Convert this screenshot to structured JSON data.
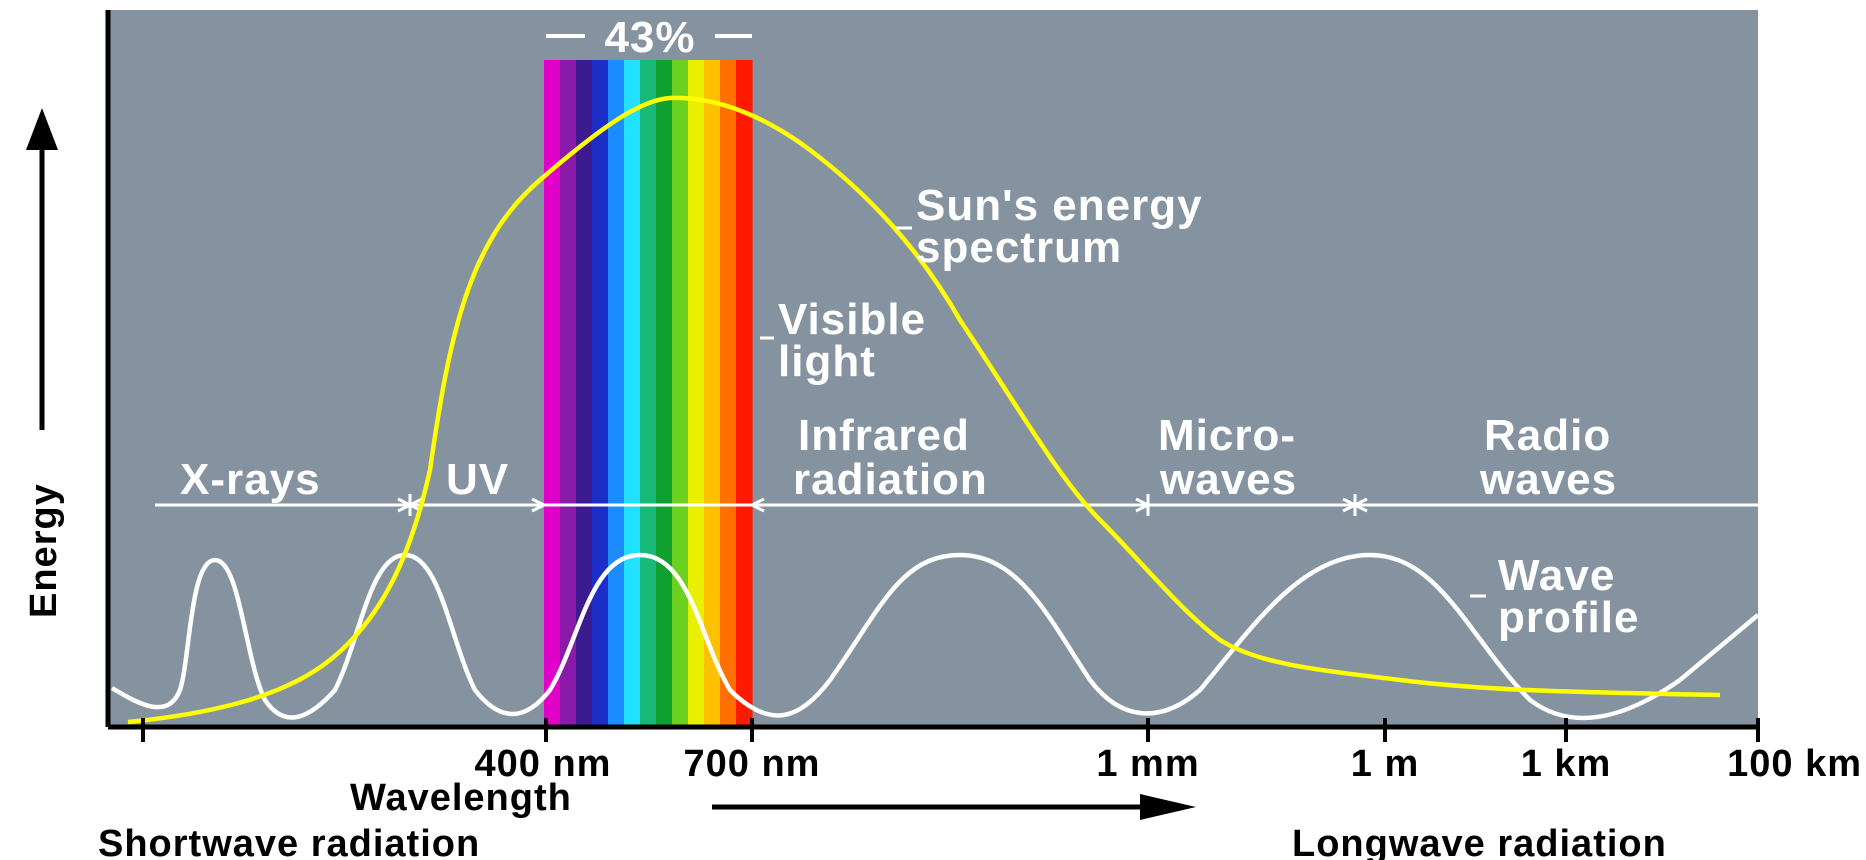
{
  "diagram": {
    "y_axis_label": "Energy",
    "x_axis_label": "Wavelength",
    "shortwave_label": "Shortwave radiation",
    "longwave_label": "Longwave radiation",
    "percent_label": "43%",
    "tick_labels": [
      "400 nm",
      "700 nm",
      "1 mm",
      "1 m",
      "1 km",
      "100 km"
    ],
    "band_labels": {
      "xrays": "X-rays",
      "uv": "UV",
      "infrared_line1": "Infrared",
      "infrared_line2": "radiation",
      "micro_line1": "Micro-",
      "micro_line2": "waves",
      "radio_line1": "Radio",
      "radio_line2": "waves"
    },
    "annotations": {
      "sun_line1": "Sun's energy",
      "sun_line2": "spectrum",
      "visible_line1": "Visible",
      "visible_line2": "light",
      "wave_line1": "Wave",
      "wave_line2": "profile"
    },
    "colors": {
      "background": "#8593a0",
      "sun_curve": "#ffff00",
      "wave_curve": "#ffffff",
      "spectrum": [
        "#e000c8",
        "#8a1aa8",
        "#3c1a90",
        "#1b2ec8",
        "#1c8cff",
        "#22e0ff",
        "#18b878",
        "#10a030",
        "#6cd020",
        "#e8f000",
        "#ffc000",
        "#ff7000",
        "#ff1a00"
      ]
    }
  }
}
